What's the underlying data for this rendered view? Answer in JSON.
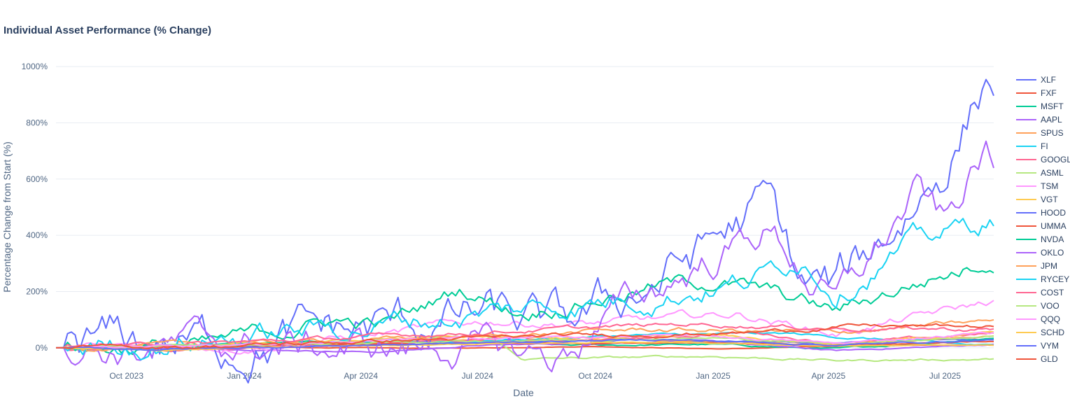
{
  "chart_data": {
    "type": "line",
    "title": "Individual Asset Performance (% Change)",
    "xlabel": "Date",
    "ylabel": "Percentage Change from Start (%)",
    "x_range": [
      "2023-08-07",
      "2025-08-08"
    ],
    "ylim": [
      -70,
      1050
    ],
    "y_ticks": [
      0,
      200,
      400,
      600,
      800,
      1000
    ],
    "y_tick_labels": [
      "0%",
      "200%",
      "400%",
      "600%",
      "800%",
      "1000%"
    ],
    "x_ticks": [
      "2023-10-01",
      "2024-01-01",
      "2024-04-01",
      "2024-07-01",
      "2024-10-01",
      "2025-01-01",
      "2025-04-01",
      "2025-07-01"
    ],
    "x_tick_labels": [
      "Oct 2023",
      "Jan 2024",
      "Apr 2024",
      "Jul 2024",
      "Oct 2024",
      "Jan 2025",
      "Apr 2025",
      "Jul 2025"
    ],
    "grid": true,
    "legend_position": "right",
    "series": [
      {
        "name": "XLF",
        "color": "#636efa",
        "points": [
          [
            "2023-08-07",
            0
          ],
          [
            "2023-11-01",
            -5
          ],
          [
            "2024-03-01",
            12
          ],
          [
            "2024-07-01",
            18
          ],
          [
            "2024-11-01",
            28
          ],
          [
            "2025-04-07",
            18
          ],
          [
            "2025-08-08",
            30
          ]
        ]
      },
      {
        "name": "FXF",
        "color": "#ef553b",
        "points": [
          [
            "2023-08-07",
            0
          ],
          [
            "2023-12-01",
            3
          ],
          [
            "2024-06-01",
            -2
          ],
          [
            "2024-10-01",
            5
          ],
          [
            "2025-01-10",
            -4
          ],
          [
            "2025-05-01",
            8
          ],
          [
            "2025-08-08",
            10
          ]
        ]
      },
      {
        "name": "MSFT",
        "color": "#00cc96",
        "points": [
          [
            "2023-08-07",
            0
          ],
          [
            "2023-11-01",
            10
          ],
          [
            "2024-03-01",
            20
          ],
          [
            "2024-07-01",
            22
          ],
          [
            "2024-09-01",
            8
          ],
          [
            "2025-01-01",
            12
          ],
          [
            "2025-04-07",
            -5
          ],
          [
            "2025-08-08",
            35
          ]
        ]
      },
      {
        "name": "AAPL",
        "color": "#ab63fa",
        "points": [
          [
            "2023-08-07",
            0
          ],
          [
            "2024-01-01",
            -5
          ],
          [
            "2024-04-15",
            -15
          ],
          [
            "2024-07-01",
            8
          ],
          [
            "2024-12-20",
            25
          ],
          [
            "2025-04-07",
            -10
          ],
          [
            "2025-08-08",
            12
          ]
        ]
      },
      {
        "name": "SPUS",
        "color": "#ffa15a",
        "points": [
          [
            "2023-08-07",
            0
          ],
          [
            "2024-01-01",
            10
          ],
          [
            "2024-07-01",
            25
          ],
          [
            "2024-11-01",
            30
          ],
          [
            "2025-04-07",
            10
          ],
          [
            "2025-08-08",
            40
          ]
        ]
      },
      {
        "name": "FI",
        "color": "#19d3f3",
        "points": [
          [
            "2023-08-07",
            0
          ],
          [
            "2024-01-01",
            15
          ],
          [
            "2024-07-01",
            25
          ],
          [
            "2024-11-01",
            45
          ],
          [
            "2025-03-01",
            50
          ],
          [
            "2025-08-08",
            5
          ]
        ]
      },
      {
        "name": "GOOGL",
        "color": "#ff6692",
        "points": [
          [
            "2023-08-07",
            0
          ],
          [
            "2023-11-01",
            -8
          ],
          [
            "2024-04-01",
            15
          ],
          [
            "2024-07-15",
            35
          ],
          [
            "2024-09-10",
            20
          ],
          [
            "2025-02-01",
            55
          ],
          [
            "2025-04-07",
            15
          ],
          [
            "2025-08-08",
            50
          ]
        ]
      },
      {
        "name": "ASML",
        "color": "#b6e880",
        "points": [
          [
            "2023-08-07",
            0
          ],
          [
            "2024-01-01",
            10
          ],
          [
            "2024-07-10",
            40
          ],
          [
            "2024-08-05",
            -40
          ],
          [
            "2025-01-01",
            -30
          ],
          [
            "2025-04-07",
            -45
          ],
          [
            "2025-08-08",
            -40
          ]
        ]
      },
      {
        "name": "TSM",
        "color": "#ff97ff",
        "points": [
          [
            "2023-08-07",
            0
          ],
          [
            "2024-01-01",
            5
          ],
          [
            "2024-04-01",
            40
          ],
          [
            "2024-07-10",
            95
          ],
          [
            "2024-10-01",
            85
          ],
          [
            "2025-01-20",
            120
          ],
          [
            "2025-04-07",
            50
          ],
          [
            "2025-08-08",
            165
          ]
        ]
      },
      {
        "name": "VGT",
        "color": "#fecb52",
        "points": [
          [
            "2023-08-07",
            0
          ],
          [
            "2024-01-01",
            15
          ],
          [
            "2024-07-10",
            40
          ],
          [
            "2024-10-01",
            35
          ],
          [
            "2025-01-01",
            45
          ],
          [
            "2025-04-07",
            10
          ],
          [
            "2025-08-08",
            50
          ]
        ]
      },
      {
        "name": "HOOD",
        "color": "#636efa",
        "points": [
          [
            "2023-08-07",
            0
          ],
          [
            "2024-01-01",
            25
          ],
          [
            "2024-04-01",
            60
          ],
          [
            "2024-07-01",
            110
          ],
          [
            "2024-09-05",
            50
          ],
          [
            "2024-12-01",
            280
          ],
          [
            "2025-02-13",
            510
          ],
          [
            "2025-03-10",
            220
          ],
          [
            "2025-04-07",
            200
          ],
          [
            "2025-05-20",
            420
          ],
          [
            "2025-07-01",
            660
          ],
          [
            "2025-08-01",
            960
          ],
          [
            "2025-08-08",
            965
          ]
        ]
      },
      {
        "name": "UMMA",
        "color": "#ef553b",
        "points": [
          [
            "2023-08-07",
            0
          ],
          [
            "2024-01-01",
            8
          ],
          [
            "2024-07-01",
            15
          ],
          [
            "2025-01-01",
            20
          ],
          [
            "2025-04-07",
            5
          ],
          [
            "2025-08-08",
            25
          ]
        ]
      },
      {
        "name": "NVDA",
        "color": "#00cc96",
        "points": [
          [
            "2023-08-07",
            0
          ],
          [
            "2023-12-01",
            5
          ],
          [
            "2024-03-08",
            100
          ],
          [
            "2024-04-19",
            80
          ],
          [
            "2024-06-18",
            210
          ],
          [
            "2024-08-05",
            130
          ],
          [
            "2024-11-20",
            220
          ],
          [
            "2025-01-06",
            240
          ],
          [
            "2025-04-07",
            130
          ],
          [
            "2025-06-01",
            220
          ],
          [
            "2025-08-08",
            315
          ]
        ]
      },
      {
        "name": "OKLO",
        "color": "#ab63fa",
        "points": [
          [
            "2023-08-07",
            0
          ],
          [
            "2024-01-01",
            5
          ],
          [
            "2024-05-10",
            -5
          ],
          [
            "2024-06-01",
            15
          ],
          [
            "2024-09-01",
            -40
          ],
          [
            "2024-10-15",
            120
          ],
          [
            "2025-02-12",
            430
          ],
          [
            "2025-04-07",
            150
          ],
          [
            "2025-06-10",
            550
          ],
          [
            "2025-07-01",
            420
          ],
          [
            "2025-08-01",
            700
          ],
          [
            "2025-08-08",
            600
          ]
        ]
      },
      {
        "name": "JPM",
        "color": "#ffa15a",
        "points": [
          [
            "2023-08-07",
            0
          ],
          [
            "2024-01-01",
            15
          ],
          [
            "2024-07-01",
            40
          ],
          [
            "2024-11-08",
            65
          ],
          [
            "2025-04-07",
            55
          ],
          [
            "2025-08-08",
            95
          ]
        ]
      },
      {
        "name": "RYCEY",
        "color": "#19d3f3",
        "points": [
          [
            "2023-08-07",
            0
          ],
          [
            "2024-01-01",
            40
          ],
          [
            "2024-07-01",
            120
          ],
          [
            "2024-10-01",
            165
          ],
          [
            "2025-02-01",
            240
          ],
          [
            "2025-03-10",
            330
          ],
          [
            "2025-04-07",
            220
          ],
          [
            "2025-06-01",
            360
          ],
          [
            "2025-08-08",
            460
          ]
        ]
      },
      {
        "name": "COST",
        "color": "#ff6692",
        "points": [
          [
            "2023-08-07",
            0
          ],
          [
            "2024-01-01",
            20
          ],
          [
            "2024-07-01",
            55
          ],
          [
            "2024-12-15",
            85
          ],
          [
            "2025-04-07",
            70
          ],
          [
            "2025-08-08",
            65
          ]
        ]
      },
      {
        "name": "VOO",
        "color": "#b6e880",
        "points": [
          [
            "2023-08-07",
            0
          ],
          [
            "2024-01-01",
            10
          ],
          [
            "2024-07-01",
            25
          ],
          [
            "2025-01-01",
            35
          ],
          [
            "2025-04-07",
            15
          ],
          [
            "2025-08-08",
            42
          ]
        ]
      },
      {
        "name": "QQQ",
        "color": "#ff97ff",
        "points": [
          [
            "2023-08-07",
            0
          ],
          [
            "2024-01-01",
            12
          ],
          [
            "2024-07-10",
            35
          ],
          [
            "2025-01-01",
            42
          ],
          [
            "2025-04-07",
            15
          ],
          [
            "2025-08-08",
            55
          ]
        ]
      },
      {
        "name": "SCHD",
        "color": "#fecb52",
        "points": [
          [
            "2023-08-07",
            0
          ],
          [
            "2023-10-27",
            -8
          ],
          [
            "2024-04-01",
            8
          ],
          [
            "2024-11-25",
            22
          ],
          [
            "2025-04-07",
            5
          ],
          [
            "2025-08-08",
            10
          ]
        ]
      },
      {
        "name": "VYM",
        "color": "#636efa",
        "points": [
          [
            "2023-08-07",
            0
          ],
          [
            "2023-10-27",
            -6
          ],
          [
            "2024-05-01",
            12
          ],
          [
            "2024-11-25",
            30
          ],
          [
            "2025-04-07",
            10
          ],
          [
            "2025-08-08",
            28
          ]
        ]
      },
      {
        "name": "GLD",
        "color": "#ef553b",
        "points": [
          [
            "2023-08-07",
            0
          ],
          [
            "2024-01-01",
            8
          ],
          [
            "2024-04-15",
            25
          ],
          [
            "2024-10-31",
            48
          ],
          [
            "2025-02-01",
            55
          ],
          [
            "2025-04-21",
            78
          ],
          [
            "2025-08-08",
            75
          ]
        ]
      }
    ]
  }
}
